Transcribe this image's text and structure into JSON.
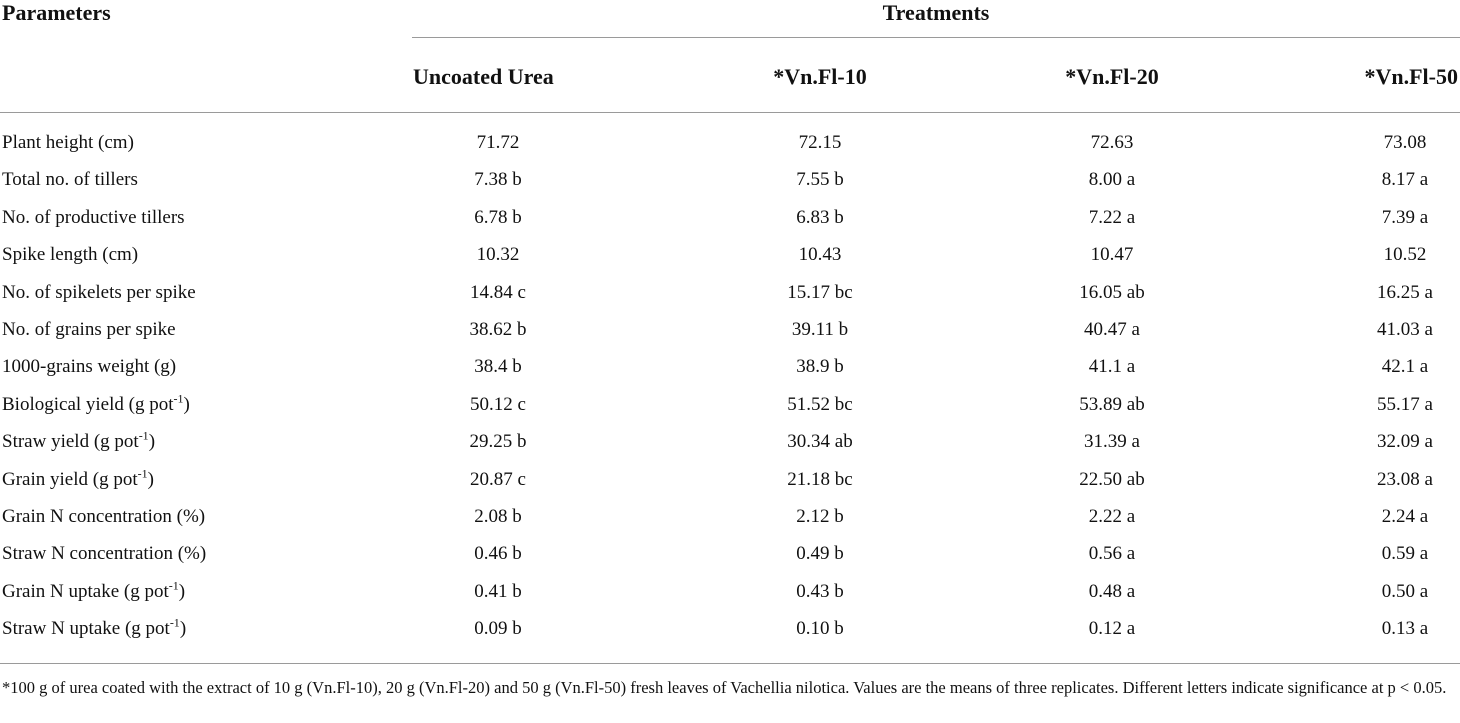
{
  "table": {
    "param_header": "Parameters",
    "group_header": "Treatments",
    "columns": [
      "Uncoated Urea",
      "*Vn.Fl-10",
      "*Vn.Fl-20",
      "*Vn.Fl-50"
    ],
    "rows": [
      {
        "label": "Plant height (cm)",
        "sup": "",
        "label_tail": "",
        "values": [
          "71.72",
          "72.15",
          "72.63",
          "73.08"
        ]
      },
      {
        "label": "Total no. of tillers",
        "sup": "",
        "label_tail": "",
        "values": [
          "7.38 b",
          "7.55 b",
          "8.00 a",
          "8.17 a"
        ]
      },
      {
        "label": "No. of productive tillers",
        "sup": "",
        "label_tail": "",
        "values": [
          "6.78 b",
          "6.83 b",
          "7.22 a",
          "7.39 a"
        ]
      },
      {
        "label": "Spike length (cm)",
        "sup": "",
        "label_tail": "",
        "values": [
          "10.32",
          "10.43",
          "10.47",
          "10.52"
        ]
      },
      {
        "label": "No. of spikelets per spike",
        "sup": "",
        "label_tail": "",
        "values": [
          "14.84 c",
          "15.17 bc",
          "16.05 ab",
          "16.25 a"
        ]
      },
      {
        "label": "No. of grains per spike",
        "sup": "",
        "label_tail": "",
        "values": [
          "38.62 b",
          "39.11 b",
          "40.47 a",
          "41.03 a"
        ]
      },
      {
        "label": "1000-grains weight (g)",
        "sup": "",
        "label_tail": "",
        "values": [
          "38.4 b",
          "38.9 b",
          "41.1 a",
          "42.1 a"
        ]
      },
      {
        "label": "Biological yield (g pot",
        "sup": "-1",
        "label_tail": ")",
        "values": [
          "50.12 c",
          "51.52 bc",
          "53.89 ab",
          "55.17 a"
        ]
      },
      {
        "label": "Straw yield (g pot",
        "sup": "-1",
        "label_tail": ")",
        "values": [
          "29.25 b",
          "30.34 ab",
          "31.39 a",
          "32.09 a"
        ]
      },
      {
        "label": "Grain yield (g pot",
        "sup": "-1",
        "label_tail": ")",
        "values": [
          "20.87 c",
          "21.18 bc",
          "22.50 ab",
          "23.08 a"
        ]
      },
      {
        "label": "Grain N concentration (%)",
        "sup": "",
        "label_tail": "",
        "values": [
          "2.08 b",
          "2.12 b",
          "2.22 a",
          "2.24 a"
        ]
      },
      {
        "label": "Straw N concentration (%)",
        "sup": "",
        "label_tail": "",
        "values": [
          "0.46 b",
          "0.49 b",
          "0.56 a",
          "0.59 a"
        ]
      },
      {
        "label": "Grain N uptake (g pot",
        "sup": "-1",
        "label_tail": ")",
        "values": [
          "0.41 b",
          "0.43 b",
          "0.48 a",
          "0.50 a"
        ]
      },
      {
        "label": "Straw N uptake (g pot",
        "sup": "-1",
        "label_tail": ")",
        "values": [
          "0.09 b",
          "0.10 b",
          "0.12 a",
          "0.13 a"
        ]
      }
    ]
  },
  "footnote": "*100 g of urea coated with the extract of 10 g (Vn.Fl-10), 20 g (Vn.Fl-20) and 50 g (Vn.Fl-50) fresh leaves of Vachellia nilotica. Values are the means of three replicates. Different letters indicate significance at p < 0.05."
}
